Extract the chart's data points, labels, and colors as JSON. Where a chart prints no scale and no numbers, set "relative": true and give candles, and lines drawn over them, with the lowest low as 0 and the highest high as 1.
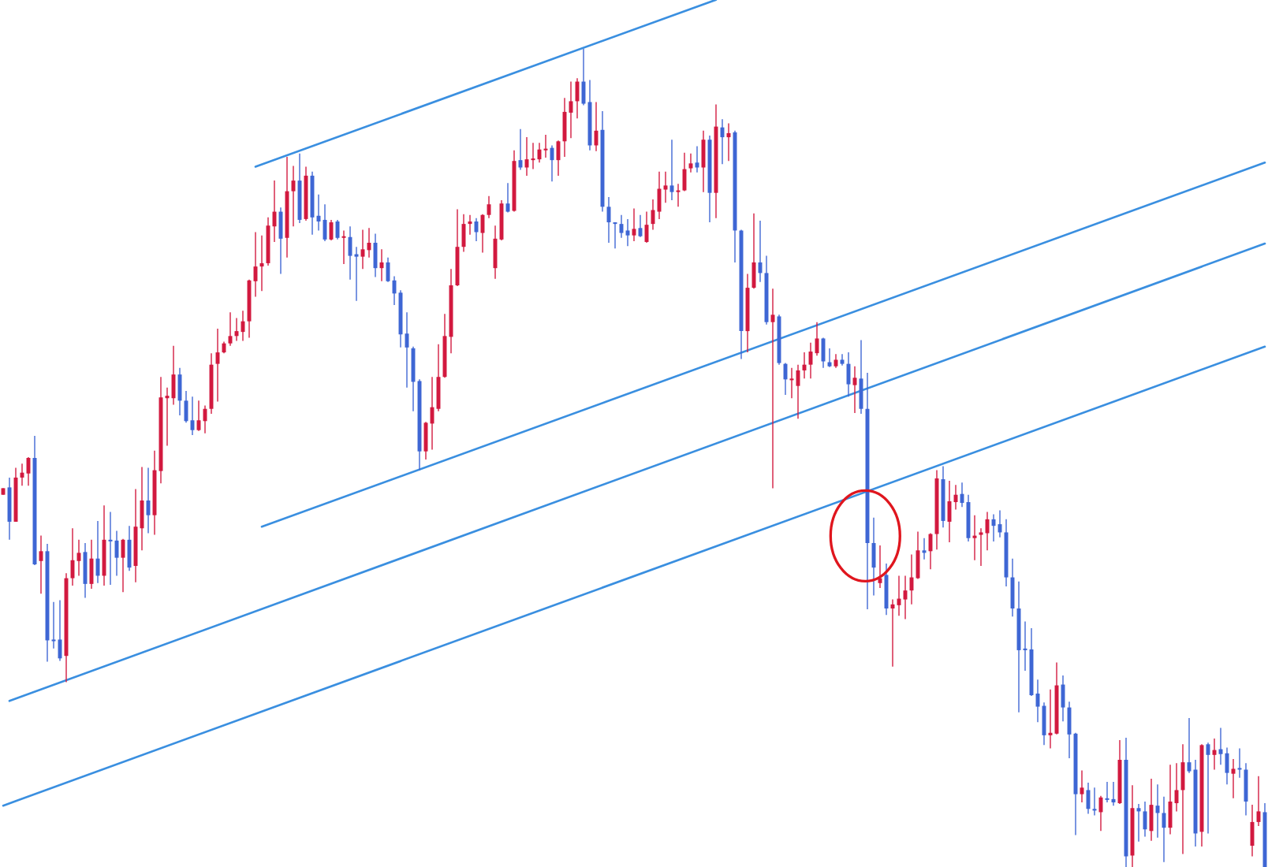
{
  "chart_data": {
    "type": "candlestick",
    "relative": true,
    "categories": [
      null,
      null,
      null,
      null,
      null,
      null,
      null,
      null,
      null,
      null,
      null,
      null,
      null,
      null,
      null,
      null,
      null,
      null,
      null,
      null,
      null,
      null,
      null,
      null,
      null,
      null,
      null,
      null,
      null,
      null,
      null,
      null,
      null,
      null,
      null,
      null,
      null,
      null,
      null,
      null,
      null,
      null,
      null,
      null,
      null,
      null,
      null,
      null,
      null,
      null,
      null,
      null,
      null,
      null,
      null,
      null,
      null,
      null,
      null,
      null,
      null,
      null,
      null,
      null,
      null,
      null,
      null,
      null,
      null,
      null,
      null,
      null,
      null,
      null,
      null,
      null,
      null,
      null,
      null,
      null,
      null,
      null,
      null,
      null,
      null,
      null,
      null,
      null,
      null,
      null,
      null,
      null,
      null,
      null,
      null,
      null,
      null,
      null,
      null,
      null,
      null,
      null,
      null,
      null,
      null,
      null,
      null,
      null,
      null,
      null,
      null,
      null,
      null,
      null,
      null,
      null,
      null,
      null,
      null,
      null,
      null,
      null,
      null,
      null,
      null,
      null,
      null,
      null,
      null,
      null,
      null,
      null,
      null,
      null,
      null,
      null,
      null,
      null,
      null,
      null,
      null,
      null,
      null,
      null,
      null,
      null,
      null,
      null,
      null,
      null,
      null,
      null,
      null,
      null,
      null,
      null,
      null,
      null,
      null,
      null,
      null,
      null,
      null,
      null,
      null,
      null,
      null,
      null,
      null,
      null,
      null,
      null,
      null,
      null,
      null,
      null,
      null,
      null,
      null,
      null,
      null,
      null,
      null,
      null,
      null,
      null,
      null,
      null,
      null,
      null,
      null,
      null,
      null,
      null,
      null,
      null,
      null,
      null,
      null,
      null,
      null
    ],
    "ohlc": [
      [
        0.455,
        0.463,
        0.455,
        0.463
      ],
      [
        0.464,
        0.476,
        0.4,
        0.422
      ],
      [
        0.422,
        0.488,
        0.422,
        0.476
      ],
      [
        0.476,
        0.493,
        0.466,
        0.482
      ],
      [
        0.481,
        0.501,
        0.466,
        0.5
      ],
      [
        0.5,
        0.527,
        0.369,
        0.37
      ],
      [
        0.374,
        0.405,
        0.334,
        0.386
      ],
      [
        0.386,
        0.395,
        0.251,
        0.277
      ],
      [
        0.278,
        0.324,
        0.267,
        0.276
      ],
      [
        0.278,
        0.326,
        0.252,
        0.255
      ],
      [
        0.258,
        0.359,
        0.226,
        0.353
      ],
      [
        0.353,
        0.414,
        0.344,
        0.375
      ],
      [
        0.374,
        0.4,
        0.356,
        0.384
      ],
      [
        0.385,
        0.396,
        0.329,
        0.346
      ],
      [
        0.346,
        0.4,
        0.34,
        0.377
      ],
      [
        0.377,
        0.423,
        0.347,
        0.356
      ],
      [
        0.356,
        0.442,
        0.344,
        0.4
      ],
      [
        0.399,
        0.434,
        0.345,
        0.398
      ],
      [
        0.399,
        0.411,
        0.356,
        0.378
      ],
      [
        0.378,
        0.401,
        0.336,
        0.4
      ],
      [
        0.4,
        0.417,
        0.362,
        0.366
      ],
      [
        0.368,
        0.462,
        0.348,
        0.416
      ],
      [
        0.414,
        0.489,
        0.387,
        0.448
      ],
      [
        0.448,
        0.488,
        0.408,
        0.43
      ],
      [
        0.43,
        0.509,
        0.406,
        0.485
      ],
      [
        0.484,
        0.599,
        0.469,
        0.574
      ],
      [
        0.573,
        0.586,
        0.515,
        0.576
      ],
      [
        0.573,
        0.637,
        0.565,
        0.602
      ],
      [
        0.602,
        0.61,
        0.552,
        0.57
      ],
      [
        0.57,
        0.582,
        0.543,
        0.545
      ],
      [
        0.546,
        0.575,
        0.528,
        0.534
      ],
      [
        0.534,
        0.57,
        0.533,
        0.546
      ],
      [
        0.545,
        0.564,
        0.53,
        0.56
      ],
      [
        0.56,
        0.628,
        0.554,
        0.614
      ],
      [
        0.615,
        0.658,
        0.569,
        0.629
      ],
      [
        0.629,
        0.642,
        0.628,
        0.64
      ],
      [
        0.64,
        0.678,
        0.637,
        0.649
      ],
      [
        0.649,
        0.671,
        0.643,
        0.655
      ],
      [
        0.654,
        0.68,
        0.643,
        0.667
      ],
      [
        0.667,
        0.718,
        0.647,
        0.717
      ],
      [
        0.716,
        0.776,
        0.697,
        0.734
      ],
      [
        0.734,
        0.772,
        0.704,
        0.738
      ],
      [
        0.738,
        0.794,
        0.735,
        0.784
      ],
      [
        0.783,
        0.839,
        0.764,
        0.801
      ],
      [
        0.801,
        0.806,
        0.725,
        0.768
      ],
      [
        0.769,
        0.868,
        0.745,
        0.826
      ],
      [
        0.826,
        0.857,
        0.783,
        0.839
      ],
      [
        0.839,
        0.872,
        0.787,
        0.791
      ],
      [
        0.792,
        0.856,
        0.79,
        0.845
      ],
      [
        0.845,
        0.85,
        0.773,
        0.794
      ],
      [
        0.796,
        0.822,
        0.778,
        0.789
      ],
      [
        0.791,
        0.81,
        0.765,
        0.767
      ],
      [
        0.767,
        0.791,
        0.766,
        0.788
      ],
      [
        0.789,
        0.791,
        0.767,
        0.769
      ],
      [
        0.769,
        0.778,
        0.737,
        0.77
      ],
      [
        0.77,
        0.783,
        0.718,
        0.747
      ],
      [
        0.749,
        0.758,
        0.692,
        0.746
      ],
      [
        0.746,
        0.779,
        0.731,
        0.755
      ],
      [
        0.754,
        0.781,
        0.745,
        0.763
      ],
      [
        0.763,
        0.774,
        0.721,
        0.732
      ],
      [
        0.732,
        0.755,
        0.716,
        0.739
      ],
      [
        0.739,
        0.745,
        0.715,
        0.716
      ],
      [
        0.717,
        0.722,
        0.687,
        0.701
      ],
      [
        0.702,
        0.705,
        0.635,
        0.651
      ],
      [
        0.652,
        0.678,
        0.586,
        0.635
      ],
      [
        0.634,
        0.636,
        0.557,
        0.593
      ],
      [
        0.594,
        0.596,
        0.485,
        0.508
      ],
      [
        0.508,
        0.544,
        0.498,
        0.543
      ],
      [
        0.542,
        0.599,
        0.51,
        0.562
      ],
      [
        0.56,
        0.639,
        0.557,
        0.599
      ],
      [
        0.599,
        0.676,
        0.598,
        0.649
      ],
      [
        0.648,
        0.731,
        0.628,
        0.711
      ],
      [
        0.711,
        0.804,
        0.71,
        0.758
      ],
      [
        0.758,
        0.798,
        0.752,
        0.786
      ],
      [
        0.786,
        0.797,
        0.773,
        0.789
      ],
      [
        0.789,
        0.793,
        0.765,
        0.776
      ],
      [
        0.775,
        0.798,
        0.751,
        0.797
      ],
      [
        0.797,
        0.82,
        0.793,
        0.81
      ],
      [
        0.732,
        0.784,
        0.719,
        0.768
      ],
      [
        0.767,
        0.815,
        0.766,
        0.811
      ],
      [
        0.811,
        0.836,
        0.8,
        0.801
      ],
      [
        0.802,
        0.876,
        0.801,
        0.863
      ],
      [
        0.864,
        0.902,
        0.852,
        0.855
      ],
      [
        0.855,
        0.892,
        0.845,
        0.865
      ],
      [
        0.864,
        0.885,
        0.853,
        0.865
      ],
      [
        0.865,
        0.885,
        0.861,
        0.877
      ],
      [
        0.876,
        0.895,
        0.867,
        0.877
      ],
      [
        0.879,
        0.882,
        0.838,
        0.864
      ],
      [
        0.864,
        0.888,
        0.845,
        0.887
      ],
      [
        0.887,
        0.94,
        0.868,
        0.923
      ],
      [
        0.922,
        0.96,
        0.891,
        0.936
      ],
      [
        0.936,
        0.964,
        0.915,
        0.96
      ],
      [
        0.96,
        1,
        0.931,
        0.933
      ],
      [
        0.935,
        0.962,
        0.876,
        0.882
      ],
      [
        0.882,
        0.935,
        0.875,
        0.9
      ],
      [
        0.901,
        0.924,
        0.801,
        0.807
      ],
      [
        0.807,
        0.819,
        0.763,
        0.788
      ],
      [
        0.787,
        0.788,
        0.756,
        0.786
      ],
      [
        0.786,
        0.797,
        0.769,
        0.775
      ],
      [
        0.778,
        0.792,
        0.759,
        0.772
      ],
      [
        0.772,
        0.805,
        0.765,
        0.78
      ],
      [
        0.781,
        0.797,
        0.77,
        0.771
      ],
      [
        0.764,
        0.801,
        0.763,
        0.785
      ],
      [
        0.786,
        0.816,
        0.779,
        0.803
      ],
      [
        0.801,
        0.85,
        0.792,
        0.829
      ],
      [
        0.828,
        0.85,
        0.812,
        0.833
      ],
      [
        0.833,
        0.889,
        0.815,
        0.825
      ],
      [
        0.825,
        0.835,
        0.807,
        0.827
      ],
      [
        0.827,
        0.873,
        0.826,
        0.853
      ],
      [
        0.854,
        0.872,
        0.849,
        0.86
      ],
      [
        0.861,
        0.881,
        0.849,
        0.855
      ],
      [
        0.855,
        0.9,
        0.825,
        0.889
      ],
      [
        0.889,
        0.894,
        0.788,
        0.824
      ],
      [
        0.824,
        0.932,
        0.793,
        0.905
      ],
      [
        0.904,
        0.914,
        0.859,
        0.892
      ],
      [
        0.892,
        0.909,
        0.863,
        0.897
      ],
      [
        0.898,
        0.9,
        0.739,
        0.778
      ],
      [
        0.778,
        0.779,
        0.621,
        0.655
      ],
      [
        0.655,
        0.725,
        0.629,
        0.708
      ],
      [
        0.708,
        0.799,
        0.707,
        0.739
      ],
      [
        0.739,
        0.79,
        0.715,
        0.726
      ],
      [
        0.726,
        0.747,
        0.663,
        0.666
      ],
      [
        0.666,
        0.707,
        0.463,
        0.675
      ],
      [
        0.673,
        0.675,
        0.614,
        0.616
      ],
      [
        0.615,
        0.616,
        0.577,
        0.596
      ],
      [
        0.595,
        0.61,
        0.573,
        0.596
      ],
      [
        0.588,
        0.614,
        0.548,
        0.607
      ],
      [
        0.607,
        0.629,
        0.597,
        0.614
      ],
      [
        0.614,
        0.641,
        0.597,
        0.63
      ],
      [
        0.628,
        0.666,
        0.625,
        0.646
      ],
      [
        0.646,
        0.647,
        0.61,
        0.618
      ],
      [
        0.617,
        0.634,
        0.611,
        0.612
      ],
      [
        0.612,
        0.627,
        0.61,
        0.62
      ],
      [
        0.62,
        0.627,
        0.613,
        0.615
      ],
      [
        0.615,
        0.629,
        0.575,
        0.59
      ],
      [
        0.589,
        0.612,
        0.555,
        0.598
      ],
      [
        0.597,
        0.644,
        0.554,
        0.56
      ],
      [
        0.56,
        0.604,
        0.315,
        0.396
      ],
      [
        0.396,
        0.427,
        0.332,
        0.366
      ],
      [
        0.347,
        0.393,
        0.341,
        0.353
      ],
      [
        0.357,
        0.371,
        0.308,
        0.316
      ],
      [
        0.316,
        0.327,
        0.245,
        0.321
      ],
      [
        0.32,
        0.356,
        0.307,
        0.328
      ],
      [
        0.327,
        0.356,
        0.303,
        0.338
      ],
      [
        0.338,
        0.382,
        0.321,
        0.354
      ],
      [
        0.353,
        0.41,
        0.352,
        0.387
      ],
      [
        0.387,
        0.402,
        0.376,
        0.384
      ],
      [
        0.386,
        0.408,
        0.364,
        0.407
      ],
      [
        0.407,
        0.485,
        0.388,
        0.475
      ],
      [
        0.474,
        0.49,
        0.415,
        0.423
      ],
      [
        0.422,
        0.472,
        0.397,
        0.447
      ],
      [
        0.446,
        0.467,
        0.437,
        0.455
      ],
      [
        0.456,
        0.47,
        0.44,
        0.445
      ],
      [
        0.446,
        0.455,
        0.398,
        0.402
      ],
      [
        0.402,
        0.43,
        0.375,
        0.405
      ],
      [
        0.406,
        0.414,
        0.368,
        0.409
      ],
      [
        0.408,
        0.434,
        0.387,
        0.425
      ],
      [
        0.425,
        0.431,
        0.398,
        0.417
      ],
      [
        0.419,
        0.436,
        0.403,
        0.409
      ],
      [
        0.409,
        0.425,
        0.343,
        0.354
      ],
      [
        0.354,
        0.377,
        0.306,
        0.316
      ],
      [
        0.316,
        0.349,
        0.189,
        0.265
      ],
      [
        0.267,
        0.3,
        0.24,
        0.265
      ],
      [
        0.266,
        0.292,
        0.209,
        0.21
      ],
      [
        0.212,
        0.229,
        0.177,
        0.196
      ],
      [
        0.197,
        0.201,
        0.149,
        0.161
      ],
      [
        0.161,
        0.217,
        0.145,
        0.164
      ],
      [
        0.163,
        0.25,
        0.162,
        0.222
      ],
      [
        0.223,
        0.234,
        0.178,
        0.195
      ],
      [
        0.195,
        0.202,
        0.133,
        0.162
      ],
      [
        0.163,
        0.164,
        0.039,
        0.089
      ],
      [
        0.089,
        0.118,
        0.079,
        0.097
      ],
      [
        0.094,
        0.103,
        0.065,
        0.071
      ],
      [
        0.071,
        0.097,
        0.063,
        0.069
      ],
      [
        0.067,
        0.087,
        0.044,
        0.085
      ],
      [
        0.084,
        0.104,
        0.079,
        0.082
      ],
      [
        0.083,
        0.104,
        0.075,
        0.079
      ],
      [
        0.078,
        0.155,
        0.077,
        0.131
      ],
      [
        0.131,
        0.158,
        0,
        0.013
      ],
      [
        0.014,
        0.1,
        0,
        0.072
      ],
      [
        0.072,
        0.077,
        0.031,
        0.068
      ],
      [
        0.068,
        0.08,
        0.037,
        0.046
      ],
      [
        0.044,
        0.108,
        0.032,
        0.076
      ],
      [
        0.075,
        0.101,
        0.036,
        0.066
      ],
      [
        0.066,
        0.086,
        0.006,
        0.048
      ],
      [
        0.048,
        0.125,
        0.04,
        0.08
      ],
      [
        0.078,
        0.127,
        0.068,
        0.094
      ],
      [
        0.094,
        0.15,
        0.016,
        0.128
      ],
      [
        0.128,
        0.182,
        0.115,
        0.117
      ],
      [
        0.119,
        0.131,
        0.025,
        0.041
      ],
      [
        0.043,
        0.15,
        0.025,
        0.149
      ],
      [
        0.15,
        0.152,
        0.041,
        0.137
      ],
      [
        0.137,
        0.157,
        0.119,
        0.143
      ],
      [
        0.144,
        0.17,
        0.125,
        0.138
      ],
      [
        0.139,
        0.146,
        0.101,
        0.115
      ],
      [
        0.114,
        0.132,
        0.084,
        0.12
      ],
      [
        0.12,
        0.145,
        0.109,
        0.119
      ],
      [
        0.119,
        0.127,
        0.063,
        0.08
      ],
      [
        0.026,
        0.076,
        0.013,
        0.055
      ],
      [
        0.055,
        0.111,
        0.05,
        0.068
      ],
      [
        0.067,
        0.078,
        0,
        0
      ]
    ],
    "colors": [
      "#d2193f",
      "#3e66d4",
      "#d2193f",
      "#d2193f",
      "#d2193f",
      "#3e66d4",
      "#d2193f",
      "#3e66d4",
      "#3e66d4",
      "#3e66d4",
      "#d2193f",
      "#d2193f",
      "#d2193f",
      "#3e66d4",
      "#d2193f",
      "#3e66d4",
      "#d2193f",
      "#3e66d4",
      "#3e66d4",
      "#d2193f",
      "#3e66d4",
      "#d2193f",
      "#d2193f",
      "#3e66d4",
      "#d2193f",
      "#d2193f",
      "#d2193f",
      "#d2193f",
      "#3e66d4",
      "#3e66d4",
      "#3e66d4",
      "#d2193f",
      "#d2193f",
      "#d2193f",
      "#d2193f",
      "#d2193f",
      "#d2193f",
      "#d2193f",
      "#d2193f",
      "#d2193f",
      "#d2193f",
      "#d2193f",
      "#d2193f",
      "#d2193f",
      "#3e66d4",
      "#d2193f",
      "#d2193f",
      "#3e66d4",
      "#d2193f",
      "#3e66d4",
      "#3e66d4",
      "#3e66d4",
      "#d2193f",
      "#3e66d4",
      "#d2193f",
      "#3e66d4",
      "#3e66d4",
      "#d2193f",
      "#d2193f",
      "#3e66d4",
      "#d2193f",
      "#3e66d4",
      "#3e66d4",
      "#3e66d4",
      "#3e66d4",
      "#3e66d4",
      "#3e66d4",
      "#d2193f",
      "#d2193f",
      "#d2193f",
      "#d2193f",
      "#d2193f",
      "#d2193f",
      "#d2193f",
      "#d2193f",
      "#3e66d4",
      "#d2193f",
      "#d2193f",
      "#d2193f",
      "#d2193f",
      "#3e66d4",
      "#d2193f",
      "#3e66d4",
      "#d2193f",
      "#d2193f",
      "#d2193f",
      "#d2193f",
      "#3e66d4",
      "#d2193f",
      "#d2193f",
      "#d2193f",
      "#d2193f",
      "#3e66d4",
      "#3e66d4",
      "#d2193f",
      "#3e66d4",
      "#3e66d4",
      "#3e66d4",
      "#3e66d4",
      "#3e66d4",
      "#d2193f",
      "#3e66d4",
      "#d2193f",
      "#d2193f",
      "#d2193f",
      "#d2193f",
      "#3e66d4",
      "#d2193f",
      "#d2193f",
      "#d2193f",
      "#3e66d4",
      "#d2193f",
      "#3e66d4",
      "#d2193f",
      "#3e66d4",
      "#d2193f",
      "#3e66d4",
      "#3e66d4",
      "#d2193f",
      "#d2193f",
      "#3e66d4",
      "#3e66d4",
      "#d2193f",
      "#3e66d4",
      "#3e66d4",
      "#d2193f",
      "#d2193f",
      "#d2193f",
      "#d2193f",
      "#d2193f",
      "#3e66d4",
      "#3e66d4",
      "#d2193f",
      "#3e66d4",
      "#3e66d4",
      "#d2193f",
      "#3e66d4",
      "#3e66d4",
      "#3e66d4",
      "#d2193f",
      "#3e66d4",
      "#d2193f",
      "#d2193f",
      "#d2193f",
      "#d2193f",
      "#d2193f",
      "#3e66d4",
      "#d2193f",
      "#d2193f",
      "#3e66d4",
      "#d2193f",
      "#d2193f",
      "#3e66d4",
      "#3e66d4",
      "#d2193f",
      "#d2193f",
      "#d2193f",
      "#3e66d4",
      "#3e66d4",
      "#3e66d4",
      "#3e66d4",
      "#3e66d4",
      "#3e66d4",
      "#3e66d4",
      "#3e66d4",
      "#3e66d4",
      "#d2193f",
      "#d2193f",
      "#3e66d4",
      "#3e66d4",
      "#3e66d4",
      "#d2193f",
      "#3e66d4",
      "#3e66d4",
      "#d2193f",
      "#3e66d4",
      "#3e66d4",
      "#d2193f",
      "#3e66d4",
      "#d2193f",
      "#3e66d4",
      "#3e66d4",
      "#d2193f",
      "#3e66d4",
      "#3e66d4",
      "#d2193f",
      "#d2193f",
      "#d2193f",
      "#3e66d4",
      "#3e66d4",
      "#d2193f",
      "#3e66d4",
      "#d2193f",
      "#3e66d4",
      "#3e66d4",
      "#d2193f",
      "#3e66d4",
      "#3e66d4",
      "#d2193f",
      "#d2193f",
      "#3e66d4"
    ],
    "series": [
      {
        "type": "line",
        "color": "#3a8fe0",
        "values": [
          null,
          null,
          null,
          null,
          null,
          null,
          null,
          null,
          null,
          null,
          null,
          null,
          null,
          null,
          null,
          null,
          null,
          null,
          null,
          null,
          null,
          null,
          null,
          null,
          null,
          null,
          null,
          null,
          null,
          null,
          null,
          null,
          null,
          null,
          null,
          null,
          null,
          null,
          null,
          null,
          0.856,
          null,
          null,
          null,
          null,
          null,
          null,
          null,
          null,
          null,
          null,
          null,
          null,
          null,
          null,
          null,
          null,
          null,
          null,
          null,
          null,
          null,
          null,
          null,
          null,
          null,
          null,
          null,
          null,
          null,
          null,
          null,
          null,
          null,
          null,
          null,
          null,
          null,
          null,
          null,
          null,
          null,
          null,
          null,
          null,
          null,
          null,
          null,
          null,
          null,
          null,
          null,
          null,
          null,
          null,
          null,
          null,
          null,
          null,
          null,
          null,
          null,
          null,
          null,
          null,
          null,
          null,
          null,
          null,
          null,
          null,
          null,
          null,
          1.06,
          null,
          null,
          null,
          null,
          null,
          null,
          null,
          null,
          null,
          null,
          null,
          null,
          null,
          null,
          null,
          null,
          null,
          null,
          null,
          null,
          null,
          null,
          null,
          null,
          null,
          null,
          null,
          null,
          null,
          null,
          null,
          null,
          null,
          null,
          null,
          null,
          null,
          null,
          null,
          null,
          null,
          null,
          null,
          null,
          null,
          null,
          null,
          null,
          null,
          null,
          null,
          null,
          null,
          null,
          null,
          null,
          null,
          null,
          null,
          null,
          null,
          null,
          null,
          null,
          null,
          null,
          null,
          null,
          null,
          null,
          null,
          null,
          null,
          null,
          null,
          null,
          null,
          null,
          null,
          null,
          null,
          null,
          null,
          null,
          null,
          null,
          null
        ]
      },
      {
        "type": "line",
        "color": "#3a8fe0",
        "values": [
          null,
          null,
          null,
          null,
          null,
          null,
          null,
          null,
          null,
          null,
          null,
          null,
          null,
          null,
          null,
          null,
          null,
          null,
          null,
          null,
          null,
          null,
          null,
          null,
          null,
          null,
          null,
          null,
          null,
          null,
          null,
          null,
          null,
          null,
          null,
          null,
          null,
          null,
          null,
          null,
          null,
          0.416,
          null,
          null,
          null,
          null,
          null,
          null,
          null,
          null,
          null,
          null,
          null,
          null,
          null,
          null,
          null,
          null,
          null,
          null,
          null,
          null,
          null,
          null,
          null,
          null,
          null,
          null,
          null,
          null,
          null,
          null,
          null,
          null,
          null,
          null,
          null,
          null,
          null,
          null,
          null,
          null,
          null,
          null,
          null,
          null,
          null,
          null,
          null,
          null,
          null,
          null,
          null,
          null,
          null,
          null,
          null,
          null,
          null,
          null,
          null,
          null,
          null,
          null,
          null,
          null,
          null,
          null,
          null,
          null,
          null,
          null,
          null,
          null,
          null,
          null,
          null,
          null,
          null,
          null,
          null,
          null,
          null,
          null,
          null,
          null,
          null,
          null,
          null,
          null,
          null,
          null,
          null,
          null,
          null,
          null,
          null,
          null,
          null,
          null,
          null,
          null,
          null,
          null,
          null,
          null,
          null,
          null,
          null,
          null,
          null,
          null,
          null,
          null,
          null,
          null,
          null,
          null,
          null,
          null,
          null,
          null,
          null,
          null,
          null,
          null,
          null,
          null,
          null,
          null,
          null,
          null,
          null,
          null,
          null,
          null,
          null,
          null,
          null,
          null,
          null,
          null,
          null,
          null,
          null,
          null,
          null,
          null,
          null,
          null,
          null,
          null,
          null,
          null,
          null,
          null,
          null,
          null,
          null,
          null,
          0.861
        ]
      },
      {
        "type": "line",
        "color": "#3a8fe0",
        "values": [
          null,
          0.203,
          null,
          null,
          null,
          null,
          null,
          null,
          null,
          null,
          null,
          null,
          null,
          null,
          null,
          null,
          null,
          null,
          null,
          null,
          null,
          null,
          null,
          null,
          null,
          null,
          null,
          null,
          null,
          null,
          null,
          null,
          null,
          null,
          null,
          null,
          null,
          null,
          null,
          null,
          null,
          null,
          null,
          null,
          null,
          null,
          null,
          null,
          null,
          null,
          null,
          null,
          null,
          null,
          null,
          null,
          null,
          null,
          null,
          null,
          null,
          null,
          null,
          null,
          null,
          null,
          null,
          null,
          null,
          null,
          null,
          null,
          null,
          null,
          null,
          null,
          null,
          null,
          null,
          null,
          null,
          null,
          null,
          null,
          null,
          null,
          null,
          null,
          null,
          null,
          null,
          null,
          null,
          null,
          null,
          null,
          null,
          null,
          null,
          null,
          null,
          null,
          null,
          null,
          null,
          null,
          null,
          null,
          null,
          null,
          null,
          null,
          null,
          null,
          null,
          null,
          null,
          null,
          null,
          null,
          null,
          null,
          null,
          null,
          null,
          null,
          null,
          null,
          null,
          null,
          null,
          null,
          null,
          null,
          null,
          null,
          null,
          null,
          null,
          null,
          null,
          null,
          null,
          null,
          null,
          null,
          null,
          null,
          null,
          null,
          null,
          null,
          null,
          null,
          null,
          null,
          null,
          null,
          null,
          null,
          null,
          null,
          null,
          null,
          null,
          null,
          null,
          null,
          null,
          null,
          null,
          null,
          null,
          null,
          null,
          null,
          null,
          null,
          null,
          null,
          null,
          null,
          null,
          null,
          null,
          null,
          null,
          null,
          null,
          null,
          null,
          null,
          null,
          null,
          null,
          null,
          null,
          null,
          null,
          null,
          0.762
        ]
      },
      {
        "type": "line",
        "color": "#3a8fe0",
        "values": [
          0.075,
          null,
          null,
          null,
          null,
          null,
          null,
          null,
          null,
          null,
          null,
          null,
          null,
          null,
          null,
          null,
          null,
          null,
          null,
          null,
          null,
          null,
          null,
          null,
          null,
          null,
          null,
          null,
          null,
          null,
          null,
          null,
          null,
          null,
          null,
          null,
          null,
          null,
          null,
          null,
          null,
          null,
          null,
          null,
          null,
          null,
          null,
          null,
          null,
          null,
          null,
          null,
          null,
          null,
          null,
          null,
          null,
          null,
          null,
          null,
          null,
          null,
          null,
          null,
          null,
          null,
          null,
          null,
          null,
          null,
          null,
          null,
          null,
          null,
          null,
          null,
          null,
          null,
          null,
          null,
          null,
          null,
          null,
          null,
          null,
          null,
          null,
          null,
          null,
          null,
          null,
          null,
          null,
          null,
          null,
          null,
          null,
          null,
          null,
          null,
          null,
          null,
          null,
          null,
          null,
          null,
          null,
          null,
          null,
          null,
          null,
          null,
          null,
          null,
          null,
          null,
          null,
          null,
          null,
          null,
          null,
          null,
          null,
          null,
          null,
          null,
          null,
          null,
          null,
          null,
          null,
          null,
          null,
          null,
          null,
          null,
          null,
          null,
          null,
          null,
          null,
          null,
          null,
          null,
          null,
          null,
          null,
          null,
          null,
          null,
          null,
          null,
          null,
          null,
          null,
          null,
          null,
          null,
          null,
          null,
          null,
          null,
          null,
          null,
          null,
          null,
          null,
          null,
          null,
          null,
          null,
          null,
          null,
          null,
          null,
          null,
          null,
          null,
          null,
          null,
          null,
          null,
          null,
          null,
          null,
          null,
          null,
          null,
          null,
          null,
          null,
          null,
          null,
          null,
          null,
          null,
          null,
          null,
          null,
          null,
          0.636
        ]
      }
    ]
  }
}
